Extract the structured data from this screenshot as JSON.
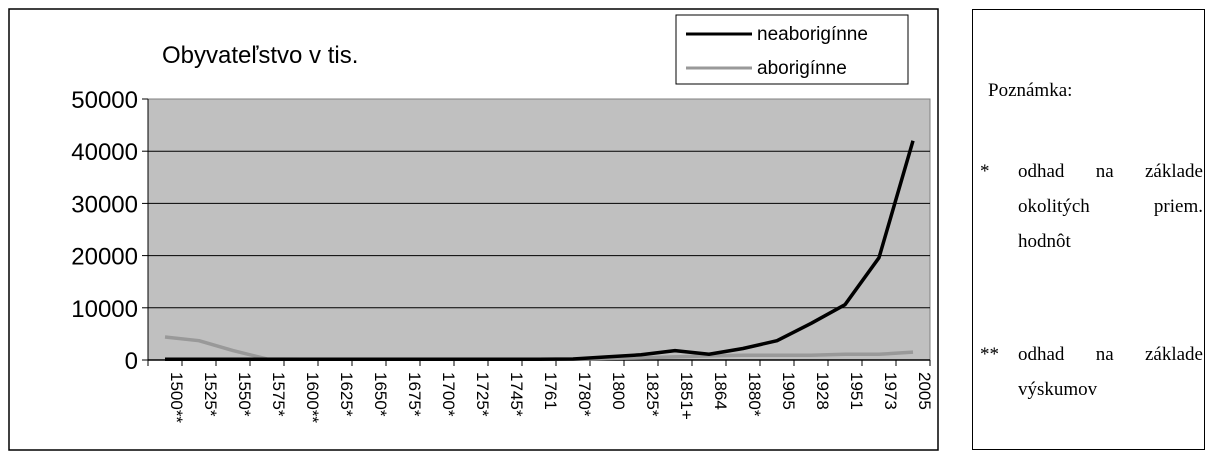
{
  "chart_data": {
    "type": "line",
    "title": "Obyvateľstvo v tis.",
    "categories": [
      "1500**",
      "1525*",
      "1550*",
      "1575*",
      "1600**",
      "1625*",
      "1650*",
      "1675*",
      "1700*",
      "1725*",
      "1745*",
      "1761",
      "1780*",
      "1800",
      "1825*",
      "1851+",
      "1864",
      "1880*",
      "1905",
      "1928",
      "1951",
      "1973",
      "2005"
    ],
    "series": [
      {
        "name": "neaborigínne",
        "color": "#000000",
        "values": [
          150,
          150,
          150,
          150,
          150,
          150,
          150,
          150,
          150,
          150,
          150,
          150,
          200,
          600,
          1000,
          1800,
          1100,
          2200,
          3700,
          7000,
          10600,
          19600,
          42000
        ]
      },
      {
        "name": "aborigínne",
        "color": "#999999",
        "values": [
          4400,
          3700,
          1800,
          200,
          150,
          150,
          150,
          150,
          150,
          150,
          150,
          150,
          150,
          300,
          400,
          600,
          800,
          900,
          900,
          900,
          1100,
          1100,
          1500
        ]
      }
    ],
    "ylim": [
      0,
      50000
    ],
    "yticks": [
      0,
      10000,
      20000,
      30000,
      40000,
      50000
    ],
    "grid": true,
    "legend": "top-right",
    "plot_bg": "#c0c0c0"
  },
  "note": {
    "title": "Poznámka:",
    "items": [
      {
        "mark": "*",
        "lines": [
          "odhad na základe",
          "okolitých priem.",
          "hodnôt"
        ]
      },
      {
        "mark": "**",
        "lines": [
          "odhad na základe",
          "výskumov"
        ]
      }
    ]
  }
}
